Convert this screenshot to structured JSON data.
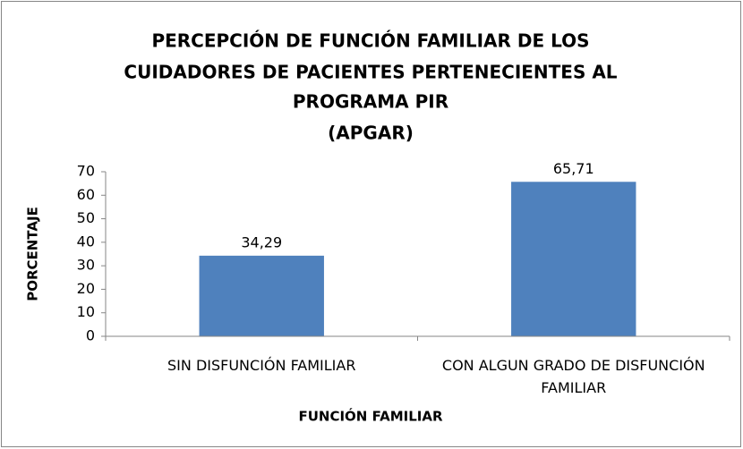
{
  "chart_data": {
    "type": "bar",
    "title": [
      "PERCEPCIÓN DE FUNCIÓN FAMILIAR DE LOS",
      "CUIDADORES DE PACIENTES PERTENECIENTES AL",
      "PROGRAMA PIR",
      "(APGAR)"
    ],
    "x_label": "FUNCIÓN FAMILIAR",
    "y_label": "PORCENTAJE",
    "categories": [
      "SIN DISFUNCIÓN FAMILIAR",
      "CON ALGUN GRADO DE DISFUNCIÓN FAMILIAR"
    ],
    "values": [
      34.29,
      65.71
    ],
    "value_labels": [
      "34,29",
      "65,71"
    ],
    "color": "#4f81bd",
    "ylim": [
      0,
      70
    ],
    "yticks": [
      0,
      10,
      20,
      30,
      40,
      50,
      60,
      70
    ],
    "grid": false
  }
}
